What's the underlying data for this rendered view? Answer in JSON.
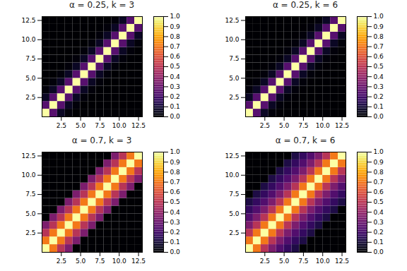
{
  "chart_data": [
    {
      "type": "heatmap",
      "title": "α = 0.25, k = 3",
      "values": [
        [
          1,
          0.25,
          0.0625,
          0.015625,
          0,
          0,
          0,
          0,
          0,
          0,
          0,
          0,
          0
        ],
        [
          0.25,
          1,
          0.25,
          0.0625,
          0.015625,
          0,
          0,
          0,
          0,
          0,
          0,
          0,
          0
        ],
        [
          0.0625,
          0.25,
          1,
          0.25,
          0.0625,
          0.015625,
          0,
          0,
          0,
          0,
          0,
          0,
          0
        ],
        [
          0.015625,
          0.0625,
          0.25,
          1,
          0.25,
          0.0625,
          0.015625,
          0,
          0,
          0,
          0,
          0,
          0
        ],
        [
          0,
          0.015625,
          0.0625,
          0.25,
          1,
          0.25,
          0.0625,
          0.015625,
          0,
          0,
          0,
          0,
          0
        ],
        [
          0,
          0,
          0.015625,
          0.0625,
          0.25,
          1,
          0.25,
          0.0625,
          0.015625,
          0,
          0,
          0,
          0
        ],
        [
          0,
          0,
          0,
          0.015625,
          0.0625,
          0.25,
          1,
          0.25,
          0.0625,
          0.015625,
          0,
          0,
          0
        ],
        [
          0,
          0,
          0,
          0,
          0.015625,
          0.0625,
          0.25,
          1,
          0.25,
          0.0625,
          0.015625,
          0,
          0
        ],
        [
          0,
          0,
          0,
          0,
          0,
          0.015625,
          0.0625,
          0.25,
          1,
          0.25,
          0.0625,
          0.015625,
          0
        ],
        [
          0,
          0,
          0,
          0,
          0,
          0,
          0.015625,
          0.0625,
          0.25,
          1,
          0.25,
          0.0625,
          0.015625
        ],
        [
          0,
          0,
          0,
          0,
          0,
          0,
          0,
          0.015625,
          0.0625,
          0.25,
          1,
          0.25,
          0.0625
        ],
        [
          0,
          0,
          0,
          0,
          0,
          0,
          0,
          0,
          0.015625,
          0.0625,
          0.25,
          1,
          0.25
        ],
        [
          0,
          0,
          0,
          0,
          0,
          0,
          0,
          0,
          0,
          0.015625,
          0.0625,
          0.25,
          1
        ]
      ],
      "xlim": [
        0,
        13
      ],
      "ylim": [
        0,
        13
      ],
      "xticks": [
        2.5,
        {
          "value": 5.0,
          "label": "5.0"
        },
        7.5,
        {
          "value": 10.0,
          "label": "10.0"
        },
        12.5
      ],
      "yticks": [
        2.5,
        {
          "value": 5.0,
          "label": "5.0"
        },
        7.5,
        {
          "value": 10.0,
          "label": "10.0"
        },
        12.5
      ],
      "color": "inferno",
      "color_range": [
        0.0,
        1.0
      ],
      "color_ticks": [
        {
          "value": 0.0,
          "label": "0.0"
        },
        0.1,
        0.2,
        0.3,
        0.4,
        0.5,
        0.6,
        0.7,
        0.8,
        0.9,
        {
          "value": 1.0,
          "label": "1.0"
        }
      ]
    },
    {
      "type": "heatmap",
      "title": "α = 0.25, k = 6",
      "values": [
        [
          1,
          0.25,
          0.0625,
          0.015625,
          0.00390625,
          0.0009765625,
          0.000244140625,
          0,
          0,
          0,
          0,
          0,
          0
        ],
        [
          0.25,
          1,
          0.25,
          0.0625,
          0.015625,
          0.00390625,
          0.0009765625,
          0.000244140625,
          0,
          0,
          0,
          0,
          0
        ],
        [
          0.0625,
          0.25,
          1,
          0.25,
          0.0625,
          0.015625,
          0.00390625,
          0.0009765625,
          0.000244140625,
          0,
          0,
          0,
          0
        ],
        [
          0.015625,
          0.0625,
          0.25,
          1,
          0.25,
          0.0625,
          0.015625,
          0.00390625,
          0.0009765625,
          0.000244140625,
          0,
          0,
          0
        ],
        [
          0.00390625,
          0.015625,
          0.0625,
          0.25,
          1,
          0.25,
          0.0625,
          0.015625,
          0.00390625,
          0.0009765625,
          0.000244140625,
          0,
          0
        ],
        [
          0.0009765625,
          0.00390625,
          0.015625,
          0.0625,
          0.25,
          1,
          0.25,
          0.0625,
          0.015625,
          0.00390625,
          0.0009765625,
          0.000244140625,
          0
        ],
        [
          0.000244140625,
          0.0009765625,
          0.00390625,
          0.015625,
          0.0625,
          0.25,
          1,
          0.25,
          0.0625,
          0.015625,
          0.00390625,
          0.0009765625,
          0.000244140625
        ],
        [
          0,
          0.000244140625,
          0.0009765625,
          0.00390625,
          0.015625,
          0.0625,
          0.25,
          1,
          0.25,
          0.0625,
          0.015625,
          0.00390625,
          0.0009765625
        ],
        [
          0,
          0,
          0.000244140625,
          0.0009765625,
          0.00390625,
          0.015625,
          0.0625,
          0.25,
          1,
          0.25,
          0.0625,
          0.015625,
          0.00390625
        ],
        [
          0,
          0,
          0,
          0.000244140625,
          0.0009765625,
          0.00390625,
          0.015625,
          0.0625,
          0.25,
          1,
          0.25,
          0.0625,
          0.015625
        ],
        [
          0,
          0,
          0,
          0,
          0.000244140625,
          0.0009765625,
          0.00390625,
          0.015625,
          0.0625,
          0.25,
          1,
          0.25,
          0.0625
        ],
        [
          0,
          0,
          0,
          0,
          0,
          0.000244140625,
          0.0009765625,
          0.00390625,
          0.015625,
          0.0625,
          0.25,
          1,
          0.25
        ],
        [
          0,
          0,
          0,
          0,
          0,
          0,
          0.000244140625,
          0.0009765625,
          0.00390625,
          0.015625,
          0.0625,
          0.25,
          1
        ]
      ],
      "xlim": [
        0,
        13
      ],
      "ylim": [
        0,
        13
      ],
      "xticks": [
        2.5,
        {
          "value": 5.0,
          "label": "5.0"
        },
        7.5,
        {
          "value": 10.0,
          "label": "10.0"
        },
        12.5
      ],
      "yticks": [
        2.5,
        {
          "value": 5.0,
          "label": "5.0"
        },
        7.5,
        {
          "value": 10.0,
          "label": "10.0"
        },
        12.5
      ],
      "color": "inferno",
      "color_range": [
        0.0,
        1.0
      ],
      "color_ticks": [
        {
          "value": 0.0,
          "label": "0.0"
        },
        0.1,
        0.2,
        0.3,
        0.4,
        0.5,
        0.6,
        0.7,
        0.8,
        0.9,
        {
          "value": 1.0,
          "label": "1.0"
        }
      ]
    },
    {
      "type": "heatmap",
      "title": "α = 0.7, k = 3",
      "values": [
        [
          1,
          0.7,
          0.49,
          0.343,
          0,
          0,
          0,
          0,
          0,
          0,
          0,
          0,
          0
        ],
        [
          0.7,
          1,
          0.7,
          0.49,
          0.343,
          0,
          0,
          0,
          0,
          0,
          0,
          0,
          0
        ],
        [
          0.49,
          0.7,
          1,
          0.7,
          0.49,
          0.343,
          0,
          0,
          0,
          0,
          0,
          0,
          0
        ],
        [
          0.343,
          0.49,
          0.7,
          1,
          0.7,
          0.49,
          0.343,
          0,
          0,
          0,
          0,
          0,
          0
        ],
        [
          0,
          0.343,
          0.49,
          0.7,
          1,
          0.7,
          0.49,
          0.343,
          0,
          0,
          0,
          0,
          0
        ],
        [
          0,
          0,
          0.343,
          0.49,
          0.7,
          1,
          0.7,
          0.49,
          0.343,
          0,
          0,
          0,
          0
        ],
        [
          0,
          0,
          0,
          0.343,
          0.49,
          0.7,
          1,
          0.7,
          0.49,
          0.343,
          0,
          0,
          0
        ],
        [
          0,
          0,
          0,
          0,
          0.343,
          0.49,
          0.7,
          1,
          0.7,
          0.49,
          0.343,
          0,
          0
        ],
        [
          0,
          0,
          0,
          0,
          0,
          0.343,
          0.49,
          0.7,
          1,
          0.7,
          0.49,
          0.343,
          0
        ],
        [
          0,
          0,
          0,
          0,
          0,
          0,
          0.343,
          0.49,
          0.7,
          1,
          0.7,
          0.49,
          0.343
        ],
        [
          0,
          0,
          0,
          0,
          0,
          0,
          0,
          0.343,
          0.49,
          0.7,
          1,
          0.7,
          0.49
        ],
        [
          0,
          0,
          0,
          0,
          0,
          0,
          0,
          0,
          0.343,
          0.49,
          0.7,
          1,
          0.7
        ],
        [
          0,
          0,
          0,
          0,
          0,
          0,
          0,
          0,
          0,
          0.343,
          0.49,
          0.7,
          1
        ]
      ],
      "xlim": [
        0,
        13
      ],
      "ylim": [
        0,
        13
      ],
      "xticks": [
        2.5,
        {
          "value": 5.0,
          "label": "5.0"
        },
        7.5,
        {
          "value": 10.0,
          "label": "10.0"
        },
        12.5
      ],
      "yticks": [
        2.5,
        {
          "value": 5.0,
          "label": "5.0"
        },
        7.5,
        {
          "value": 10.0,
          "label": "10.0"
        },
        12.5
      ],
      "color": "inferno",
      "color_range": [
        0.0,
        1.0
      ],
      "color_ticks": [
        {
          "value": 0.0,
          "label": "0.0"
        },
        0.1,
        0.2,
        0.3,
        0.4,
        0.5,
        0.6,
        0.7,
        0.8,
        0.9,
        {
          "value": 1.0,
          "label": "1.0"
        }
      ]
    },
    {
      "type": "heatmap",
      "title": "α = 0.7, k = 6",
      "values": [
        [
          1,
          0.7,
          0.49,
          0.343,
          0.2401,
          0.16807,
          0.117649,
          0,
          0,
          0,
          0,
          0,
          0
        ],
        [
          0.7,
          1,
          0.7,
          0.49,
          0.343,
          0.2401,
          0.16807,
          0.117649,
          0,
          0,
          0,
          0,
          0
        ],
        [
          0.49,
          0.7,
          1,
          0.7,
          0.49,
          0.343,
          0.2401,
          0.16807,
          0.117649,
          0,
          0,
          0,
          0
        ],
        [
          0.343,
          0.49,
          0.7,
          1,
          0.7,
          0.49,
          0.343,
          0.2401,
          0.16807,
          0.117649,
          0,
          0,
          0
        ],
        [
          0.2401,
          0.343,
          0.49,
          0.7,
          1,
          0.7,
          0.49,
          0.343,
          0.2401,
          0.16807,
          0.117649,
          0,
          0
        ],
        [
          0.16807,
          0.2401,
          0.343,
          0.49,
          0.7,
          1,
          0.7,
          0.49,
          0.343,
          0.2401,
          0.16807,
          0.117649,
          0
        ],
        [
          0.117649,
          0.16807,
          0.2401,
          0.343,
          0.49,
          0.7,
          1,
          0.7,
          0.49,
          0.343,
          0.2401,
          0.16807,
          0.117649
        ],
        [
          0,
          0.117649,
          0.16807,
          0.2401,
          0.343,
          0.49,
          0.7,
          1,
          0.7,
          0.49,
          0.343,
          0.2401,
          0.16807
        ],
        [
          0,
          0,
          0.117649,
          0.16807,
          0.2401,
          0.343,
          0.49,
          0.7,
          1,
          0.7,
          0.49,
          0.343,
          0.2401
        ],
        [
          0,
          0,
          0,
          0.117649,
          0.16807,
          0.2401,
          0.343,
          0.49,
          0.7,
          1,
          0.7,
          0.49,
          0.343
        ],
        [
          0,
          0,
          0,
          0,
          0.117649,
          0.16807,
          0.2401,
          0.343,
          0.49,
          0.7,
          1,
          0.7,
          0.49
        ],
        [
          0,
          0,
          0,
          0,
          0,
          0.117649,
          0.16807,
          0.2401,
          0.343,
          0.49,
          0.7,
          1,
          0.7
        ],
        [
          0,
          0,
          0,
          0,
          0,
          0,
          0.117649,
          0.16807,
          0.2401,
          0.343,
          0.49,
          0.7,
          1
        ]
      ],
      "xlim": [
        0,
        13
      ],
      "ylim": [
        0,
        13
      ],
      "xticks": [
        2.5,
        {
          "value": 5.0,
          "label": "5.0"
        },
        7.5,
        {
          "value": 10.0,
          "label": "10.0"
        },
        12.5
      ],
      "yticks": [
        2.5,
        {
          "value": 5.0,
          "label": "5.0"
        },
        7.5,
        {
          "value": 10.0,
          "label": "10.0"
        },
        12.5
      ],
      "color": "inferno",
      "color_range": [
        0.0,
        1.0
      ],
      "color_ticks": [
        {
          "value": 0.0,
          "label": "0.0"
        },
        0.1,
        0.2,
        0.3,
        0.4,
        0.5,
        0.6,
        0.7,
        0.8,
        0.9,
        {
          "value": 1.0,
          "label": "1.0"
        }
      ]
    }
  ]
}
